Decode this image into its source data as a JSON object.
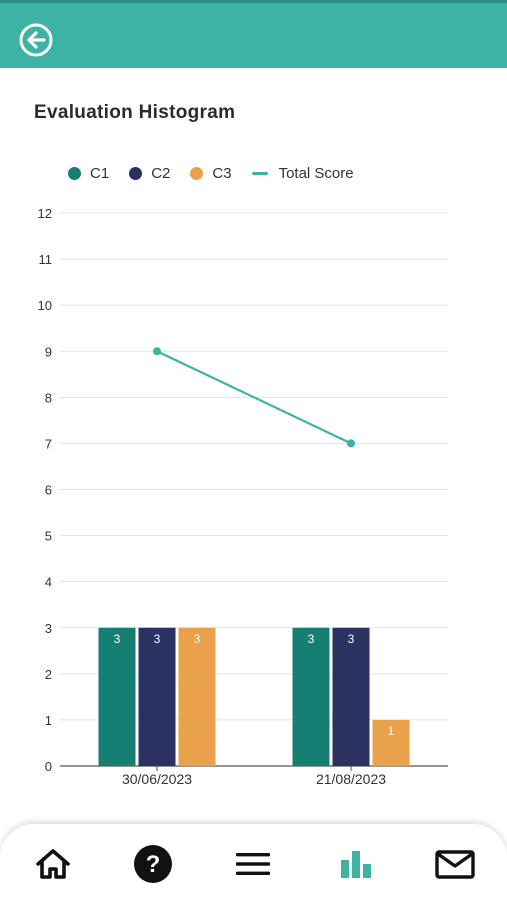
{
  "title": "Evaluation Histogram",
  "colors": {
    "header": "#3cb3a4",
    "c1": "#157f74",
    "c2": "#2b3262",
    "c3": "#eaa14c",
    "total": "#3ab4a3",
    "nav_active": "#3cb3a4"
  },
  "legend": [
    {
      "label": "C1",
      "color": "#157f74",
      "shape": "dot"
    },
    {
      "label": "C2",
      "color": "#2b3262",
      "shape": "dot"
    },
    {
      "label": "C3",
      "color": "#eaa14c",
      "shape": "dot"
    },
    {
      "label": "Total Score",
      "color": "#3ab4a3",
      "shape": "dash"
    }
  ],
  "chart_data": {
    "type": "bar",
    "categories": [
      "30/06/2023",
      "21/08/2023"
    ],
    "series": [
      {
        "name": "C1",
        "values": [
          3,
          3
        ],
        "color": "#157f74"
      },
      {
        "name": "C2",
        "values": [
          3,
          3
        ],
        "color": "#2b3262"
      },
      {
        "name": "C3",
        "values": [
          3,
          1
        ],
        "color": "#eaa14c"
      }
    ],
    "line": {
      "name": "Total Score",
      "values": [
        9,
        7
      ],
      "color": "#3ab4a3"
    },
    "ylim": [
      0,
      12
    ],
    "yticks": [
      0,
      1,
      2,
      3,
      4,
      5,
      6,
      7,
      8,
      9,
      10,
      11,
      12
    ],
    "grid": true,
    "legend_position": "top-left"
  },
  "nav": [
    {
      "name": "home-icon",
      "active": false
    },
    {
      "name": "help-icon",
      "active": false
    },
    {
      "name": "menu-icon",
      "active": false
    },
    {
      "name": "chart-icon",
      "active": true
    },
    {
      "name": "mail-icon",
      "active": false
    }
  ]
}
